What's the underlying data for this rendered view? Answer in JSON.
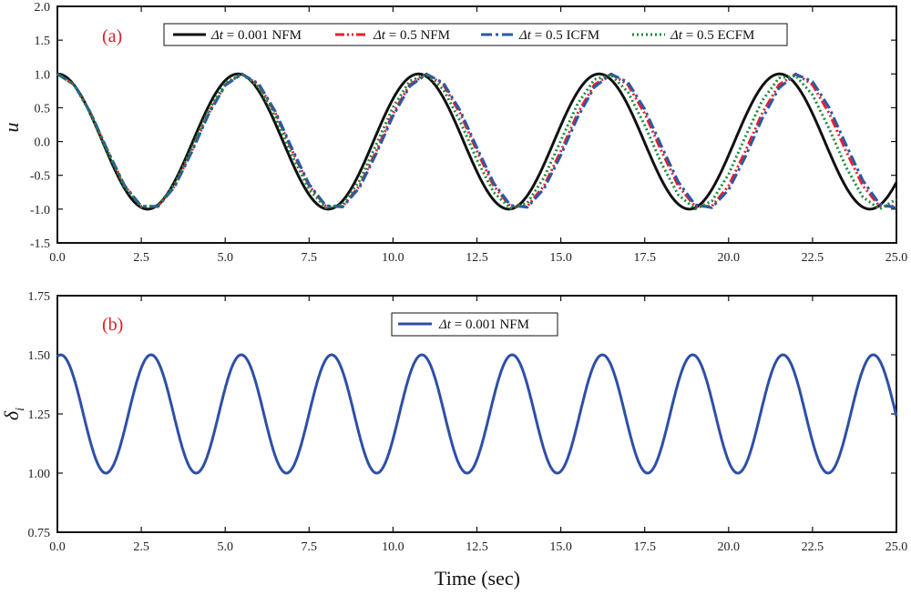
{
  "xlabel": "Time  (sec)",
  "chart_data": [
    {
      "panel": "(a)",
      "type": "line",
      "ylabel": "u",
      "xlim": [
        0,
        25
      ],
      "ylim": [
        -1.5,
        2.0
      ],
      "xticks": [
        0,
        2.5,
        5,
        7.5,
        10,
        12.5,
        15,
        17.5,
        20,
        22.5,
        25
      ],
      "xtick_labels": [
        "0.0",
        "2.5",
        "5.0",
        "7.5",
        "10.0",
        "12.5",
        "15.0",
        "17.5",
        "20.0",
        "22.5",
        "25.0"
      ],
      "yticks": [
        -1.5,
        -1.0,
        -0.5,
        0.0,
        0.5,
        1.0,
        1.5,
        2.0
      ],
      "ytick_labels": [
        "-1.5",
        "-1.0",
        "-0.5",
        "0.0",
        "0.5",
        "1.0",
        "1.5",
        "2.0"
      ],
      "legend_position": "top",
      "series": [
        {
          "name": "Δt = 0.001 NFM",
          "dt_prefix": "Δt",
          "label_rest": " = 0.001 NFM",
          "color": "#111111",
          "dash": "solid",
          "period": 5.38,
          "amplitude": 1.0,
          "step": 0.02
        },
        {
          "name": "Δt = 0.5 NFM",
          "dt_prefix": "Δt",
          "label_rest": " = 0.5 NFM",
          "color": "#e8202a",
          "dash": "dashdotdot",
          "period": 5.5,
          "amplitude": 1.0,
          "step": 0.5
        },
        {
          "name": "Δt = 0.5 ICFM",
          "dt_prefix": "Δt",
          "label_rest": " = 0.5 ICFM",
          "color": "#2a5aa8",
          "dash": "dashdot",
          "period": 5.52,
          "amplitude": 1.0,
          "step": 0.5
        },
        {
          "name": "Δt = 0.5 ECFM",
          "dt_prefix": "Δt",
          "label_rest": " = 0.5 ECFM",
          "color": "#1a8a3a",
          "dash": "dotted",
          "period": 5.45,
          "amplitude": 1.0,
          "step": 0.5
        }
      ]
    },
    {
      "panel": "(b)",
      "type": "line",
      "ylabel": "δi",
      "ylabel_main": "δ",
      "ylabel_sub": "i",
      "xlim": [
        0,
        25
      ],
      "ylim": [
        0.75,
        1.75
      ],
      "xticks": [
        0,
        2.5,
        5,
        7.5,
        10,
        12.5,
        15,
        17.5,
        20,
        22.5,
        25
      ],
      "xtick_labels": [
        "0.0",
        "2.5",
        "5.0",
        "7.5",
        "10.0",
        "12.5",
        "15.0",
        "17.5",
        "20.0",
        "22.5",
        "25.0"
      ],
      "yticks": [
        0.75,
        1.0,
        1.25,
        1.5,
        1.75
      ],
      "ytick_labels": [
        "0.75",
        "1.00",
        "1.25",
        "1.50",
        "1.75"
      ],
      "legend_position": "top",
      "series": [
        {
          "name": "Δt = 0.001 NFM",
          "dt_prefix": "Δt",
          "label_rest": " = 0.001 NFM",
          "color": "#2e4fa6",
          "dash": "solid",
          "period": 2.69,
          "min": 1.0,
          "max": 1.5,
          "step": 0.02
        }
      ]
    }
  ]
}
